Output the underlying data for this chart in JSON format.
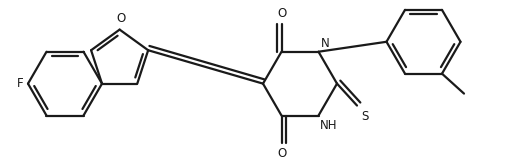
{
  "background_color": "#ffffff",
  "line_color": "#1a1a1a",
  "line_width": 1.6,
  "font_size": 8.5,
  "figsize": [
    5.1,
    1.64
  ],
  "dpi": 100,
  "xlim": [
    0,
    5.1
  ],
  "ylim": [
    0,
    1.64
  ]
}
